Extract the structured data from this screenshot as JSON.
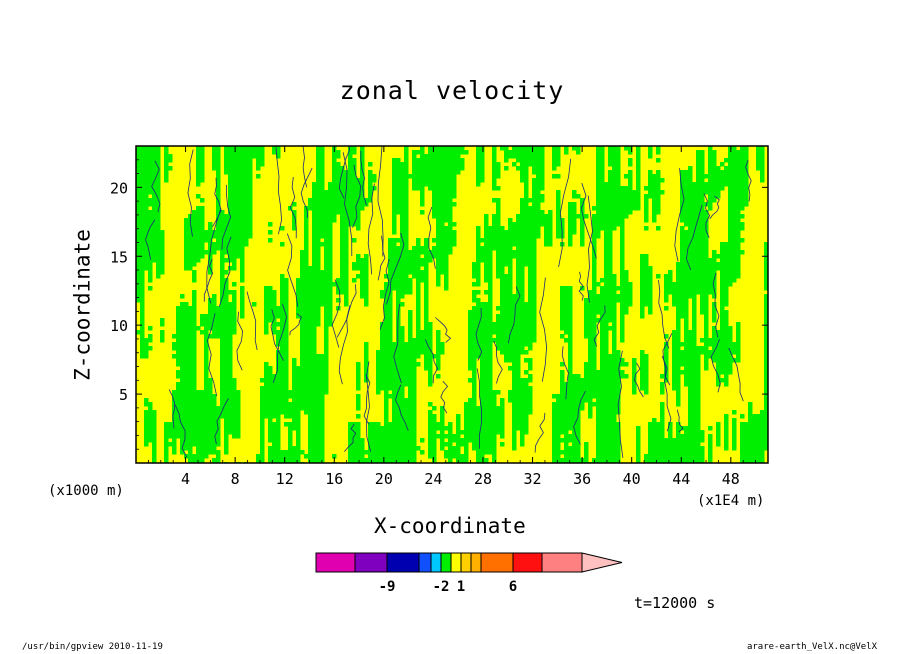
{
  "colors": {
    "positive": "#00ee00",
    "weak": "#ffff00",
    "contour": "#1a2a7a",
    "frame": "#000000"
  },
  "chart_data": {
    "type": "heatmap",
    "title": "zonal velocity",
    "xlabel": "X-coordinate",
    "ylabel": "Z-coordinate",
    "x_unit_label": "(x1000 m)",
    "x_scale_label": "(x1E4 m)",
    "xlim": [
      0,
      51
    ],
    "ylim": [
      0,
      23
    ],
    "x_ticks": [
      4,
      8,
      12,
      16,
      20,
      24,
      28,
      32,
      36,
      40,
      44,
      48
    ],
    "y_ticks": [
      5,
      10,
      15,
      20
    ],
    "field_description": "alternating green (~1 to 2) and yellow (~0 to 1) zonal velocity contour regions",
    "colorbar": {
      "colors": [
        "#e000b0",
        "#8000c0",
        "#0000b0",
        "#1050ff",
        "#00c8ff",
        "#00ee00",
        "#ffff00",
        "#ffd000",
        "#ffb000",
        "#ff7000",
        "#ff1010",
        "#ff8080",
        "#ffc0c0"
      ],
      "tick_labels": [
        "-9",
        "-2",
        "1",
        "6"
      ],
      "tick_level_index": [
        2,
        5,
        7,
        10
      ]
    },
    "time_label": "t=12000 s"
  },
  "footer": {
    "left": "/usr/bin/gpview   2010-11-19",
    "right": "arare-earth_VelX.nc@VelX"
  }
}
